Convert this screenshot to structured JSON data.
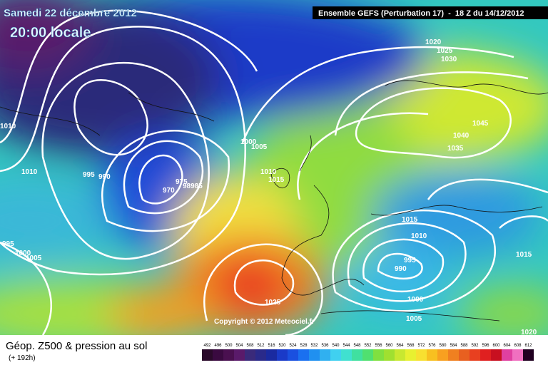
{
  "header": {
    "date": "Samedi 22 décembre 2012",
    "time": "20:00 locale",
    "run": "Ensemble GEFS (Perturbation 17)  -  18 Z du 14/12/2012"
  },
  "isobar_labels": [
    "1020",
    "1025",
    "1030",
    "1010",
    "1010",
    "995",
    "990",
    "970",
    "975",
    "98985",
    "1000",
    "1005",
    "1010",
    "1015",
    "1045",
    "1040",
    "1035",
    "1015",
    "1010",
    "995",
    "990",
    "1000",
    "1005",
    "1025",
    "995",
    "1000",
    "1005",
    "1015",
    "1020"
  ],
  "copyright": "Copyright © 2012 Meteociel.fr",
  "legend": {
    "title": "Géop. Z500 & pression au sol",
    "subtitle": "(+ 192h)",
    "levels": [
      492,
      496,
      500,
      504,
      508,
      512,
      516,
      520,
      524,
      528,
      532,
      536,
      540,
      544,
      548,
      552,
      556,
      560,
      564,
      568,
      572,
      576,
      580,
      584,
      588,
      592,
      596,
      600,
      604,
      608,
      612
    ]
  }
}
